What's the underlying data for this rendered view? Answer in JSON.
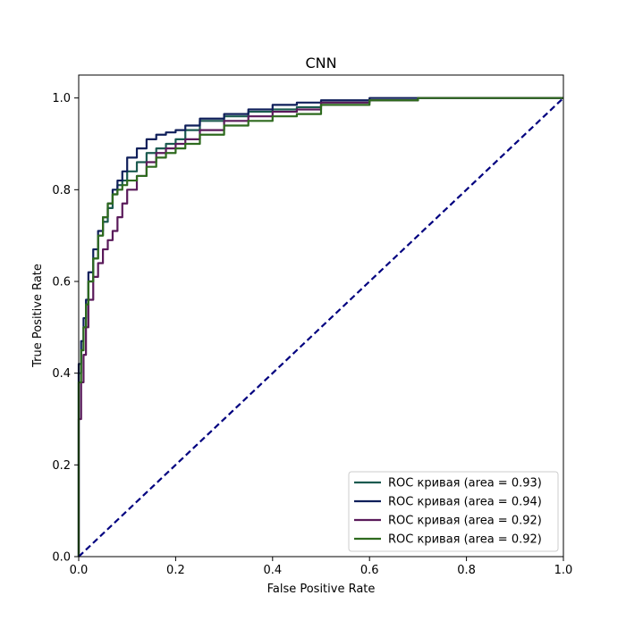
{
  "chart_data": {
    "type": "line",
    "title": "CNN",
    "xlabel": "False Positive Rate",
    "ylabel": "True Positive Rate",
    "xlim": [
      0.0,
      1.0
    ],
    "ylim": [
      0.0,
      1.05
    ],
    "xticks": [
      0.0,
      0.2,
      0.4,
      0.6,
      0.8,
      1.0
    ],
    "xtick_labels": [
      "0.0",
      "0.2",
      "0.4",
      "0.6",
      "0.8",
      "1.0"
    ],
    "yticks": [
      0.0,
      0.2,
      0.4,
      0.6,
      0.8,
      1.0
    ],
    "ytick_labels": [
      "0.0",
      "0.2",
      "0.4",
      "0.6",
      "0.8",
      "1.0"
    ],
    "grid": false,
    "legend_position": "lower-right",
    "series": [
      {
        "name": "ROC кривая (area = 0.93)",
        "color": "#1b5a4f",
        "x": [
          0.0,
          0.0,
          0.005,
          0.01,
          0.015,
          0.02,
          0.03,
          0.04,
          0.05,
          0.06,
          0.07,
          0.08,
          0.09,
          0.1,
          0.12,
          0.14,
          0.16,
          0.18,
          0.2,
          0.22,
          0.25,
          0.3,
          0.35,
          0.4,
          0.45,
          0.5,
          0.6,
          0.7,
          0.8,
          0.9,
          1.0
        ],
        "y": [
          0.0,
          0.33,
          0.4,
          0.45,
          0.5,
          0.55,
          0.6,
          0.65,
          0.7,
          0.73,
          0.76,
          0.79,
          0.81,
          0.82,
          0.84,
          0.86,
          0.88,
          0.89,
          0.9,
          0.91,
          0.93,
          0.95,
          0.96,
          0.97,
          0.975,
          0.98,
          0.99,
          0.995,
          1.0,
          1.0,
          1.0
        ]
      },
      {
        "name": "ROC кривая (area = 0.94)",
        "color": "#0f1f5a",
        "x": [
          0.0,
          0.0,
          0.005,
          0.01,
          0.015,
          0.02,
          0.03,
          0.04,
          0.05,
          0.06,
          0.07,
          0.08,
          0.09,
          0.1,
          0.12,
          0.14,
          0.16,
          0.18,
          0.2,
          0.22,
          0.25,
          0.3,
          0.35,
          0.4,
          0.45,
          0.5,
          0.6,
          0.7,
          0.8,
          0.9,
          1.0
        ],
        "y": [
          0.0,
          0.35,
          0.42,
          0.47,
          0.52,
          0.56,
          0.62,
          0.67,
          0.71,
          0.74,
          0.77,
          0.8,
          0.82,
          0.84,
          0.87,
          0.89,
          0.91,
          0.92,
          0.925,
          0.93,
          0.94,
          0.955,
          0.965,
          0.975,
          0.985,
          0.99,
          0.995,
          1.0,
          1.0,
          1.0,
          1.0
        ]
      },
      {
        "name": "ROC кривая (area = 0.92)",
        "color": "#5a1a5a",
        "x": [
          0.0,
          0.0,
          0.005,
          0.01,
          0.015,
          0.02,
          0.03,
          0.04,
          0.05,
          0.06,
          0.07,
          0.08,
          0.09,
          0.1,
          0.12,
          0.14,
          0.16,
          0.18,
          0.2,
          0.22,
          0.25,
          0.3,
          0.35,
          0.4,
          0.45,
          0.5,
          0.6,
          0.7,
          0.8,
          0.9,
          1.0
        ],
        "y": [
          0.0,
          0.17,
          0.3,
          0.38,
          0.44,
          0.5,
          0.56,
          0.61,
          0.64,
          0.67,
          0.69,
          0.71,
          0.74,
          0.77,
          0.8,
          0.83,
          0.86,
          0.88,
          0.89,
          0.9,
          0.91,
          0.93,
          0.95,
          0.96,
          0.97,
          0.975,
          0.99,
          0.995,
          1.0,
          1.0,
          1.0
        ]
      },
      {
        "name": "ROC кривая (area = 0.92)",
        "color": "#2e6a1e",
        "x": [
          0.0,
          0.0,
          0.005,
          0.01,
          0.015,
          0.02,
          0.03,
          0.04,
          0.05,
          0.06,
          0.07,
          0.08,
          0.09,
          0.1,
          0.12,
          0.14,
          0.16,
          0.18,
          0.2,
          0.22,
          0.25,
          0.3,
          0.35,
          0.4,
          0.45,
          0.5,
          0.6,
          0.7,
          0.8,
          0.9,
          1.0
        ],
        "y": [
          0.0,
          0.3,
          0.38,
          0.45,
          0.5,
          0.55,
          0.6,
          0.65,
          0.7,
          0.74,
          0.77,
          0.79,
          0.8,
          0.81,
          0.82,
          0.83,
          0.85,
          0.87,
          0.88,
          0.89,
          0.9,
          0.92,
          0.94,
          0.95,
          0.96,
          0.965,
          0.985,
          0.995,
          1.0,
          1.0,
          1.0
        ]
      }
    ],
    "reference_line": {
      "x": [
        0.0,
        1.0
      ],
      "y": [
        0.0,
        1.0
      ],
      "color": "#00007f",
      "style": "dashed"
    }
  }
}
